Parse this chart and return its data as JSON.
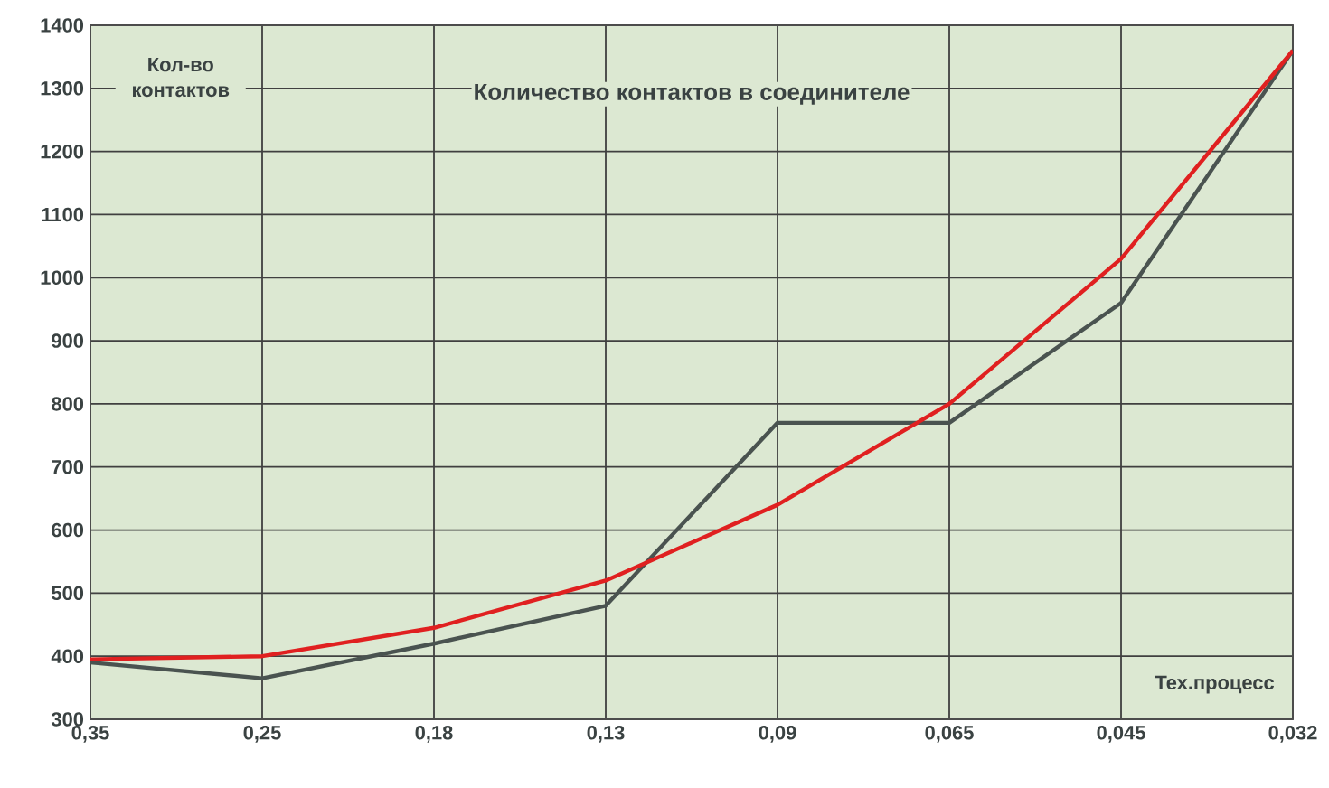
{
  "chart_data": {
    "type": "line",
    "title": "Количество контактов в соединителе",
    "xlabel": "Тех.процесс",
    "ylabel": "Кол-во контактов",
    "categories": [
      "0,35",
      "0,25",
      "0,18",
      "0,13",
      "0,09",
      "0,065",
      "0,045",
      "0,032"
    ],
    "series": [
      {
        "color": "#4a5350",
        "values": [
          390,
          365,
          420,
          480,
          770,
          770,
          960,
          1360
        ]
      },
      {
        "color": "#e02020",
        "values": [
          395,
          400,
          445,
          520,
          640,
          800,
          1030,
          1360
        ]
      }
    ],
    "ylim": [
      300,
      1400
    ],
    "yticks": [
      300,
      400,
      500,
      600,
      700,
      800,
      900,
      1000,
      1100,
      1200,
      1300,
      1400
    ],
    "grid": true
  }
}
